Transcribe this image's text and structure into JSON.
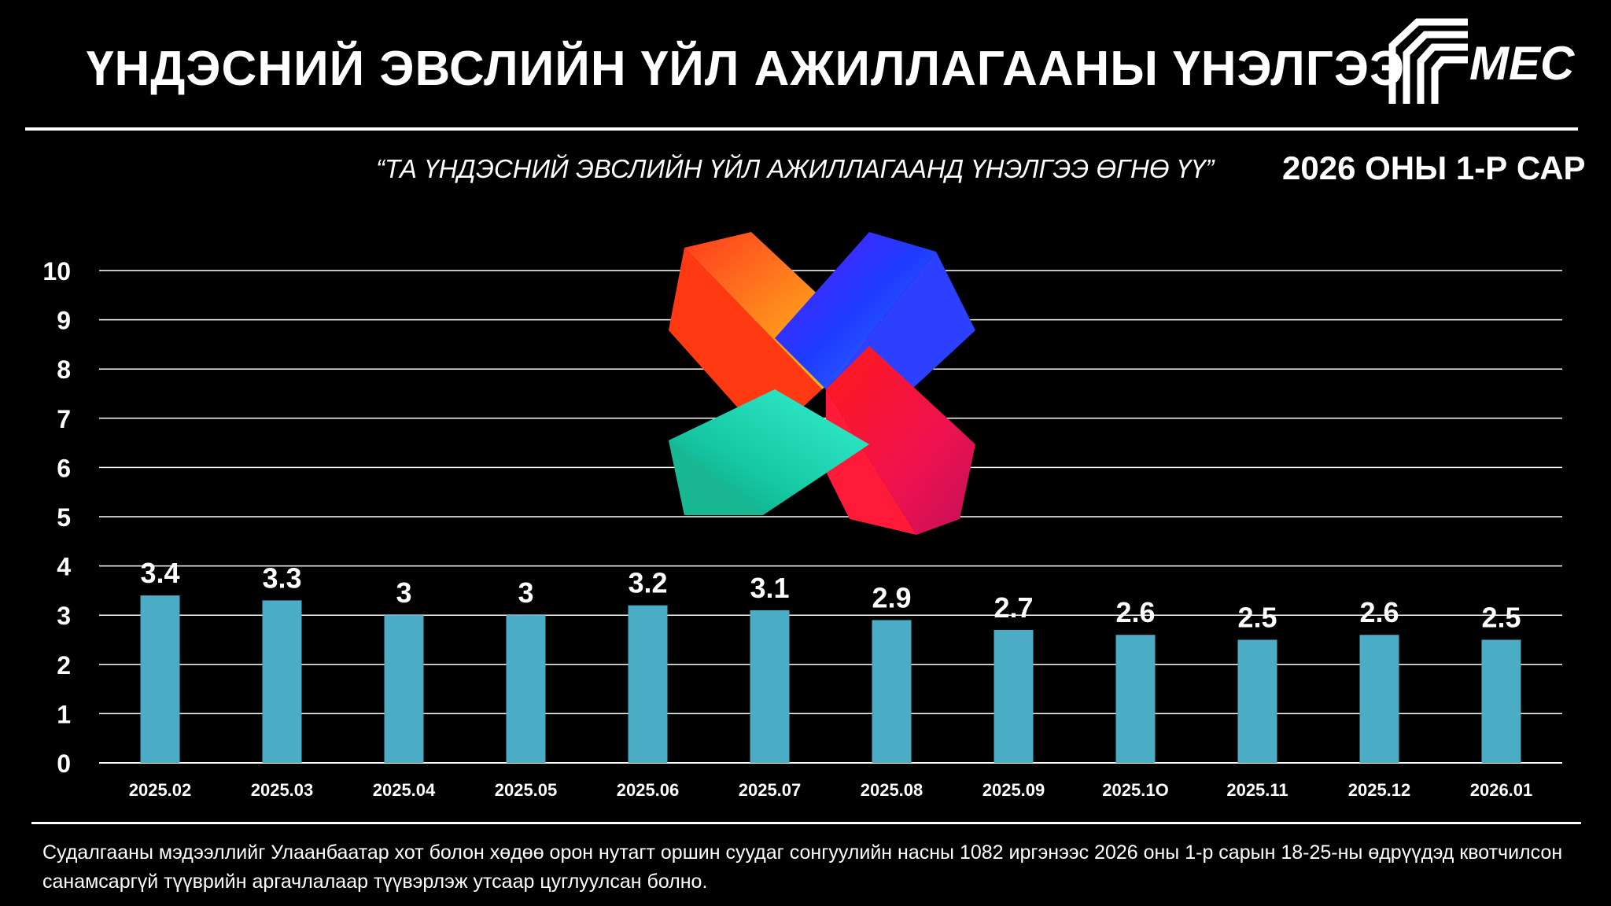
{
  "header": {
    "title": "ҮНДЭСНИЙ ЭВСЛИЙН ҮЙЛ АЖИЛЛАГААНЫ ҮНЭЛГЭЭ",
    "logo_text": "MEC"
  },
  "subtitle": "“ТА ҮНДЭСНИЙ ЭВСЛИЙН ҮЙЛ АЖИЛЛАГААНД ҮНЭЛГЭЭ ӨГНӨ ҮҮ”",
  "period": "2026 ОНЫ 1-Р САР",
  "footnote": "Судалгааны мэдээллийг Улаанбаатар хот болон хөдөө орон нутагт оршин суудаг сонгуулийн насны 1082 иргэнээс 2026 оны 1-р сарын 18-25-ны өдрүүдэд квотчилсон санамсаргүй түүврийн аргачлалаар түүвэрлэж утсаар цуглуулсан болно.",
  "colors": {
    "background": "#000000",
    "bar": "#4bacc6",
    "grid": "#ffffff",
    "text": "#ffffff",
    "emblem_orange": "#ff8a1c",
    "emblem_blue": "#2a4dff",
    "emblem_teal": "#1ed9b5",
    "emblem_red": "#ff1f3d"
  },
  "chart_data": {
    "type": "bar",
    "categories": [
      "2025.02",
      "2025.03",
      "2025.04",
      "2025.05",
      "2025.06",
      "2025.07",
      "2025.08",
      "2025.09",
      "2025.1O",
      "2025.11",
      "2025.12",
      "2026.01"
    ],
    "values": [
      3.4,
      3.3,
      3,
      3,
      3.2,
      3.1,
      2.9,
      2.7,
      2.6,
      2.5,
      2.6,
      2.5
    ],
    "value_labels": [
      "3.4",
      "3.3",
      "3",
      "3",
      "3.2",
      "3.1",
      "2.9",
      "2.7",
      "2.6",
      "2.5",
      "2.6",
      "2.5"
    ],
    "yticks": [
      "0",
      "1",
      "2",
      "3",
      "4",
      "5",
      "6",
      "7",
      "8",
      "9",
      "10"
    ],
    "ylim": [
      0,
      10
    ],
    "grid": true,
    "legend": "none"
  }
}
